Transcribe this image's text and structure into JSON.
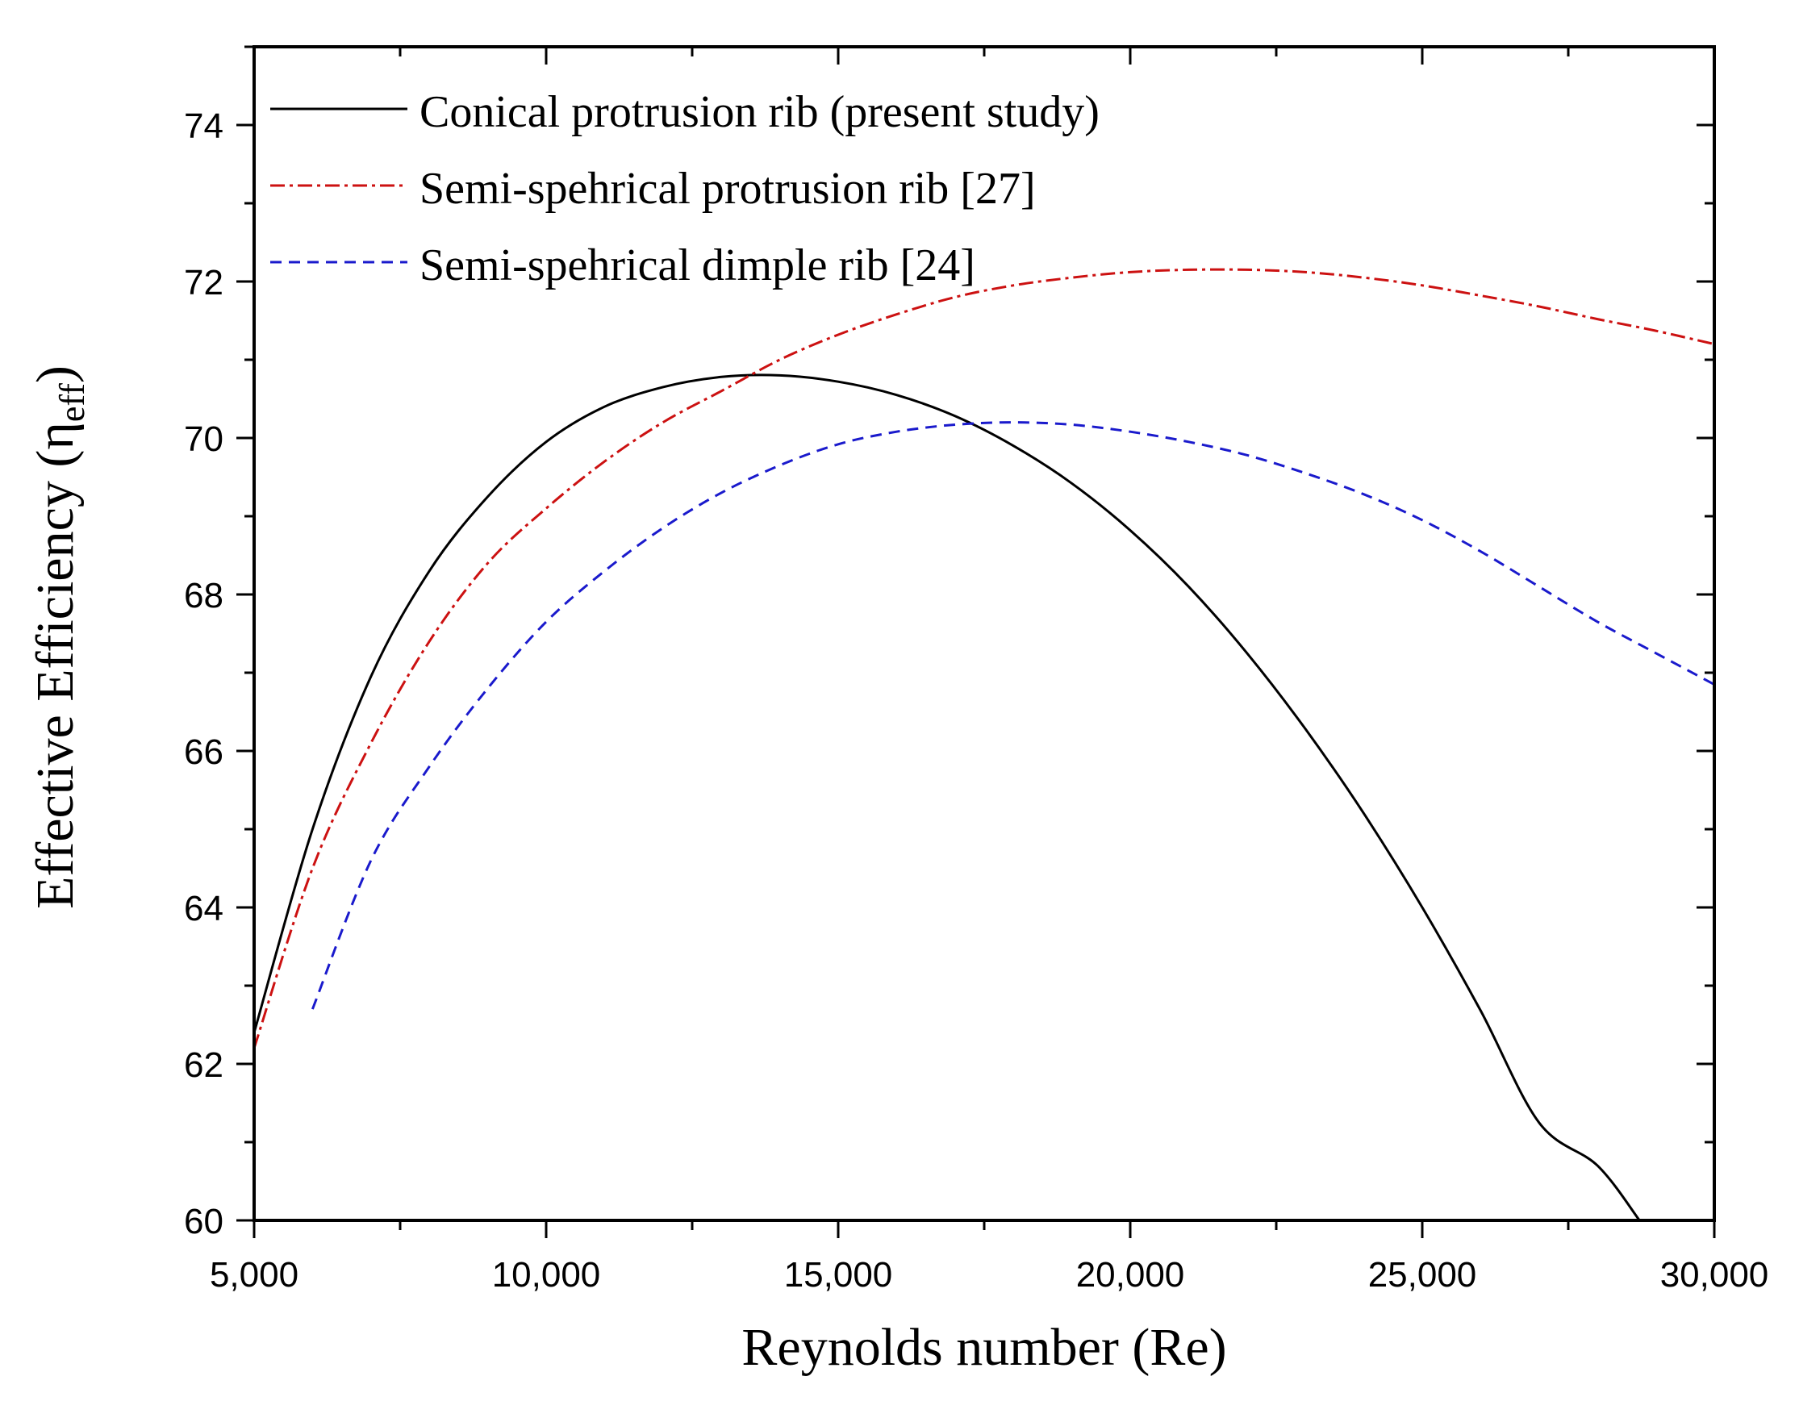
{
  "chart_data": {
    "type": "line",
    "xlabel": "Reynolds number (Re)",
    "ylabel": {
      "main": "Effective Efficiency (",
      "symbol": "η",
      "subscript": "eff",
      "close": ")"
    },
    "xlim": [
      5000,
      30000
    ],
    "ylim": [
      60,
      75
    ],
    "x_ticks": [
      5000,
      10000,
      15000,
      20000,
      25000,
      30000
    ],
    "x_tick_labels": [
      "5,000",
      "10,000",
      "15,000",
      "20,000",
      "25,000",
      "30,000"
    ],
    "y_ticks": [
      60,
      62,
      64,
      66,
      68,
      70,
      72,
      74
    ],
    "y_tick_labels": [
      "60",
      "62",
      "64",
      "66",
      "68",
      "70",
      "72",
      "74"
    ],
    "legend_position": "top-left",
    "series": [
      {
        "name": "Conical protrusion rib (present study)",
        "color": "#000000",
        "dash": "solid",
        "x": [
          5000,
          6000,
          7000,
          8000,
          9000,
          10000,
          11000,
          12000,
          13000,
          14000,
          15000,
          16000,
          17000,
          18000,
          19000,
          20000,
          21000,
          22000,
          23000,
          24000,
          25000,
          26000,
          27000,
          28000,
          28720
        ],
        "y": [
          62.4,
          65.0,
          66.95,
          68.3,
          69.25,
          69.95,
          70.4,
          70.65,
          70.78,
          70.8,
          70.72,
          70.55,
          70.28,
          69.9,
          69.42,
          68.82,
          68.1,
          67.25,
          66.28,
          65.2,
          64.0,
          62.68,
          61.25,
          60.7,
          60.0
        ]
      },
      {
        "name": "Semi-spehrical protrusion rib [27]",
        "color": "#cc1111",
        "dash": "dash-dot",
        "x": [
          5000,
          6000,
          7000,
          8000,
          9000,
          10000,
          11000,
          12000,
          13000,
          14000,
          15000,
          16000,
          17000,
          18000,
          19000,
          20000,
          21000,
          22000,
          23000,
          24000,
          25000,
          26000,
          27000,
          28000,
          29000,
          30000
        ],
        "y": [
          62.2,
          64.5,
          66.1,
          67.4,
          68.4,
          69.1,
          69.7,
          70.2,
          70.6,
          71.0,
          71.32,
          71.58,
          71.8,
          71.95,
          72.05,
          72.12,
          72.15,
          72.15,
          72.12,
          72.05,
          71.95,
          71.82,
          71.68,
          71.52,
          71.37,
          71.2
        ]
      },
      {
        "name": "Semi-spehrical dimple rib [24]",
        "color": "#1a1acc",
        "dash": "dashed",
        "x": [
          6000,
          7000,
          8000,
          9000,
          10000,
          11000,
          12000,
          13000,
          14000,
          15000,
          16000,
          17000,
          18000,
          19000,
          20000,
          21000,
          22000,
          23000,
          24000,
          25000,
          26000,
          27000,
          28000,
          29000,
          30000
        ],
        "y": [
          62.7,
          64.6,
          65.8,
          66.8,
          67.65,
          68.3,
          68.85,
          69.3,
          69.65,
          69.92,
          70.08,
          70.17,
          70.2,
          70.17,
          70.08,
          69.95,
          69.78,
          69.55,
          69.28,
          68.95,
          68.55,
          68.1,
          67.65,
          67.25,
          66.85
        ]
      }
    ]
  }
}
